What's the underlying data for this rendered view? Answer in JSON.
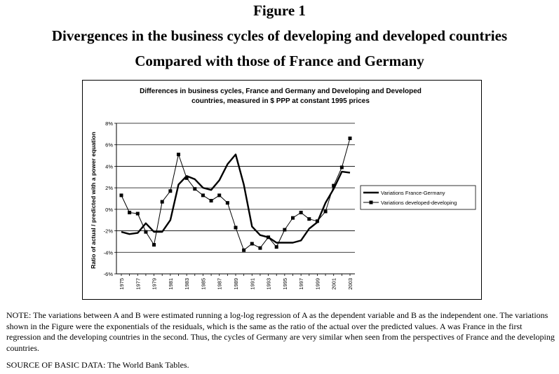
{
  "figure": {
    "label": "Figure 1",
    "title_line1": "Divergences in the business cycles of developing and developed countries",
    "title_line2": "Compared with those of France and Germany"
  },
  "note": "NOTE: The variations between A and B were estimated running a log-log regression of A as the dependent variable and B as the independent one. The variations shown in the Figure were the exponentials of the residuals, which is the same as the ratio of the actual over the predicted values.  A was France in the first regression and the developing countries in the second.   Thus, the cycles of Germany are very similar when seen from the perspectives of France and the developing countries.",
  "source": "SOURCE OF BASIC DATA: The World Bank Tables.",
  "chart_data": {
    "type": "line",
    "title_line1": "Differences in business cycles, France and Germany and Developing and Developed",
    "title_line2": "countries, measured in $ PPP at constant 1995 prices",
    "ylabel": "Ratio of actual / predicted with a power equation",
    "xlabel": "",
    "ylim": [
      -6,
      8
    ],
    "yticks": [
      8,
      6,
      4,
      2,
      0,
      -2,
      -4,
      -6
    ],
    "ytick_labels": [
      "8%",
      "6%",
      "4%",
      "2%",
      "0%",
      "-2%",
      "-4%",
      "-6%"
    ],
    "x": [
      1975,
      1976,
      1977,
      1978,
      1979,
      1980,
      1981,
      1982,
      1983,
      1984,
      1985,
      1986,
      1987,
      1988,
      1989,
      1990,
      1991,
      1992,
      1993,
      1994,
      1995,
      1996,
      1997,
      1998,
      1999,
      2000,
      2001,
      2002,
      2003
    ],
    "xtick_labels": [
      "1975",
      "1977",
      "1979",
      "1981",
      "1983",
      "1985",
      "1987",
      "1989",
      "1991",
      "1993",
      "1995",
      "1997",
      "1999",
      "2001",
      "2003"
    ],
    "grid": "horizontal",
    "legend_position": "right",
    "series": [
      {
        "name": "Variations France-Germany",
        "style": "thick-line",
        "values": [
          -2.1,
          -2.3,
          -2.2,
          -1.3,
          -2.1,
          -2.1,
          -1.0,
          2.3,
          3.1,
          2.8,
          2.0,
          1.8,
          2.7,
          4.2,
          5.1,
          2.3,
          -1.6,
          -2.4,
          -2.6,
          -3.1,
          -3.1,
          -3.1,
          -2.9,
          -1.8,
          -1.2,
          0.6,
          1.9,
          3.5,
          3.4
        ]
      },
      {
        "name": "Variations developed-developing",
        "style": "thin-line-square-markers",
        "values": [
          1.3,
          -0.3,
          -0.4,
          -2.1,
          -3.3,
          0.7,
          1.7,
          5.1,
          2.9,
          1.9,
          1.3,
          0.8,
          1.3,
          0.6,
          -1.7,
          -3.8,
          -3.2,
          -3.6,
          -2.6,
          -3.5,
          -1.9,
          -0.8,
          -0.3,
          -0.9,
          -1.1,
          -0.2,
          2.2,
          3.9,
          6.6
        ]
      }
    ]
  }
}
